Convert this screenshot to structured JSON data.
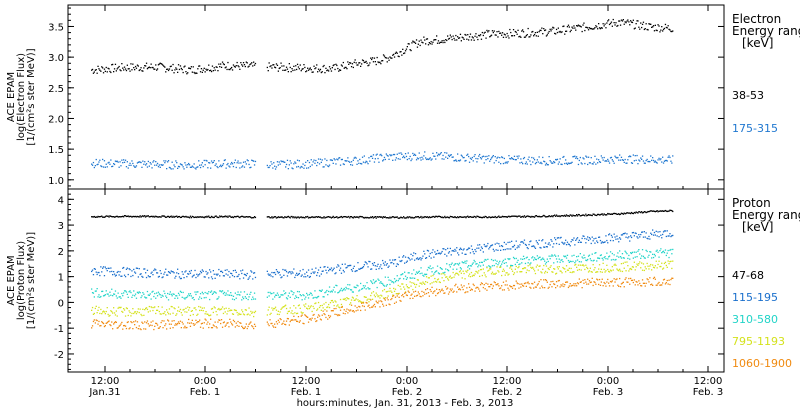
{
  "chart_data": [
    {
      "type": "scatter",
      "panel": "electron",
      "ylabel": [
        "ACE EPAM",
        "log(Electron Flux)",
        "[1/(cm²s ster MeV)]"
      ],
      "ylim": [
        0.85,
        3.85
      ],
      "yticks": [
        1.0,
        1.5,
        2.0,
        2.5,
        3.0,
        3.5
      ],
      "ytick_labels": [
        "1.0",
        "1.5",
        "2.0",
        "2.5",
        "3.0",
        "3.5"
      ],
      "legend_title": [
        "Electron",
        "Energy range",
        "[keV]"
      ],
      "series": [
        {
          "name": "38-53",
          "color": "#000000",
          "x": [
            0,
            6,
            12,
            18,
            24,
            30,
            32,
            40,
            44,
            48,
            52,
            54,
            60,
            66,
            72,
            78,
            84,
            90,
            96,
            102,
            106
          ],
          "y": [
            2.8,
            2.84,
            2.85,
            2.8,
            2.87,
            2.86,
            2.85,
            2.83,
            2.82,
            2.9,
            2.95,
            3.0,
            3.27,
            3.32,
            3.38,
            3.4,
            3.43,
            3.5,
            3.58,
            3.5,
            3.48
          ]
        },
        {
          "name": "175-315",
          "color": "#1f77d0",
          "x": [
            0,
            6,
            12,
            18,
            24,
            30,
            32,
            40,
            44,
            48,
            54,
            60,
            66,
            72,
            78,
            84,
            90,
            96,
            102,
            106
          ],
          "y": [
            1.28,
            1.27,
            1.26,
            1.25,
            1.27,
            1.27,
            1.25,
            1.27,
            1.3,
            1.32,
            1.38,
            1.4,
            1.38,
            1.35,
            1.33,
            1.32,
            1.33,
            1.35,
            1.34,
            1.33
          ]
        }
      ]
    },
    {
      "type": "scatter",
      "panel": "proton",
      "ylabel": [
        "ACE EPAM",
        "log(Proton Flux)",
        "[1/(cm²s ster MeV)]"
      ],
      "ylim": [
        -2.7,
        4.4
      ],
      "yticks": [
        -2,
        -1,
        0,
        1,
        2,
        3,
        4
      ],
      "ytick_labels": [
        "-2",
        "-1",
        "0",
        "1",
        "2",
        "3",
        "4"
      ],
      "legend_title": [
        "Proton",
        "Energy range",
        "[keV]"
      ],
      "series": [
        {
          "name": "47-68",
          "color": "#000000",
          "x": [
            0,
            6,
            12,
            18,
            24,
            30,
            32,
            40,
            48,
            56,
            64,
            72,
            80,
            88,
            96,
            102,
            106
          ],
          "y": [
            3.35,
            3.36,
            3.36,
            3.34,
            3.35,
            3.33,
            3.33,
            3.33,
            3.33,
            3.32,
            3.34,
            3.34,
            3.36,
            3.4,
            3.46,
            3.55,
            3.58
          ]
        },
        {
          "name": "115-195",
          "color": "#1a6fcc",
          "x": [
            0,
            6,
            12,
            18,
            24,
            30,
            32,
            40,
            44,
            48,
            54,
            60,
            66,
            72,
            78,
            84,
            90,
            96,
            102,
            106
          ],
          "y": [
            1.25,
            1.2,
            1.15,
            1.12,
            1.12,
            1.08,
            1.15,
            1.15,
            1.3,
            1.4,
            1.5,
            1.85,
            2.0,
            2.15,
            2.25,
            2.35,
            2.45,
            2.55,
            2.65,
            2.75
          ]
        },
        {
          "name": "310-580",
          "color": "#22d4c8",
          "x": [
            0,
            6,
            12,
            18,
            24,
            30,
            32,
            40,
            44,
            48,
            54,
            60,
            66,
            72,
            78,
            84,
            90,
            96,
            102,
            106
          ],
          "y": [
            0.4,
            0.35,
            0.3,
            0.28,
            0.3,
            0.3,
            0.3,
            0.3,
            0.5,
            0.6,
            0.85,
            1.2,
            1.4,
            1.55,
            1.65,
            1.7,
            1.75,
            1.85,
            1.92,
            1.95
          ]
        },
        {
          "name": "795-1193",
          "color": "#d4e21c",
          "x": [
            0,
            6,
            12,
            18,
            24,
            30,
            32,
            40,
            44,
            48,
            54,
            60,
            66,
            72,
            78,
            84,
            90,
            96,
            102,
            106
          ],
          "y": [
            -0.3,
            -0.35,
            -0.3,
            -0.32,
            -0.3,
            -0.35,
            -0.3,
            -0.2,
            -0.05,
            0.1,
            0.4,
            0.8,
            1.05,
            1.2,
            1.3,
            1.3,
            1.35,
            1.4,
            1.45,
            1.5
          ]
        },
        {
          "name": "1060-1900",
          "color": "#f08a10",
          "x": [
            0,
            6,
            12,
            18,
            24,
            30,
            32,
            40,
            44,
            48,
            54,
            60,
            66,
            72,
            78,
            84,
            90,
            96,
            102,
            106
          ],
          "y": [
            -0.8,
            -0.85,
            -0.85,
            -0.8,
            -0.8,
            -0.85,
            -0.8,
            -0.6,
            -0.4,
            -0.2,
            0.1,
            0.4,
            0.55,
            0.65,
            0.7,
            0.75,
            0.78,
            0.8,
            0.82,
            0.85
          ]
        }
      ]
    }
  ],
  "x_axis": {
    "tick_labels": [
      {
        "time": "12:00",
        "date": "Jan.31"
      },
      {
        "time": "0:00",
        "date": "Feb. 1"
      },
      {
        "time": "12:00",
        "date": "Feb. 1"
      },
      {
        "time": "0:00",
        "date": "Feb. 2"
      },
      {
        "time": "12:00",
        "date": "Feb. 2"
      },
      {
        "time": "0:00",
        "date": "Feb. 3"
      },
      {
        "time": "12:00",
        "date": "Feb. 3"
      }
    ],
    "title": "hours:minutes, Jan. 31, 2013 - Feb.  3, 2013"
  },
  "style": {
    "axis_color": "#000000",
    "background": "#ffffff"
  }
}
